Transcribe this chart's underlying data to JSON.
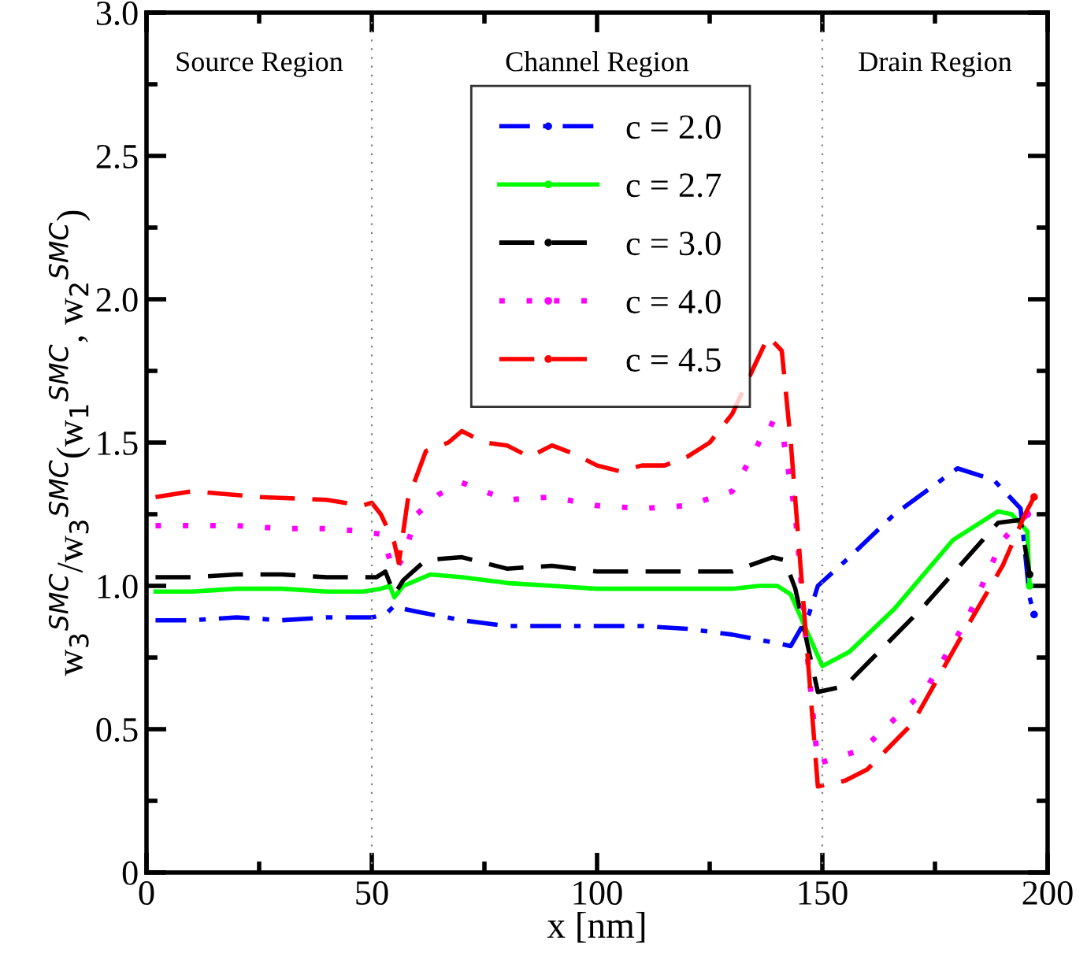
{
  "chart_data": {
    "type": "line",
    "xlabel": "x [nm]",
    "ylabel": "w$_{3}$$^{SMC}$/w$_{3}$$^{SMC}$(w$_{1}$$^{SMC}$, w$_{2}$$^{SMC}$)",
    "xlim": [
      0,
      200
    ],
    "xticks": [
      0,
      50,
      100,
      150,
      200
    ],
    "ylim": [
      0,
      3
    ],
    "yticks": [
      {
        "value": 0,
        "label": "0"
      },
      {
        "value": 0.5,
        "label": "0.5"
      },
      {
        "value": 1,
        "label": "1.0"
      },
      {
        "value": 1.5,
        "label": "1.5"
      },
      {
        "value": 2,
        "label": "2.0"
      },
      {
        "value": 2.5,
        "label": "2.5"
      },
      {
        "value": 3,
        "label": "3.0"
      }
    ],
    "grid": false,
    "legend": "top",
    "annotations": [
      "Source Region",
      "Channel Region",
      "Drain Region"
    ],
    "ref_lines": [
      {
        "axis": "x",
        "value": 50,
        "color": "#808080",
        "line_style": "dotted"
      },
      {
        "axis": "x",
        "value": 150,
        "color": "#808080",
        "line_style": "dotted"
      }
    ],
    "series": [
      {
        "name": "c = 2.0",
        "color": "#0000ff",
        "line_style": "dashdot",
        "x": [
          2,
          10,
          20,
          30,
          40,
          48,
          50,
          53,
          55,
          57,
          60,
          70,
          80,
          90,
          100,
          110,
          120,
          130,
          140,
          143,
          147,
          149,
          156,
          166,
          180,
          188,
          194,
          196,
          197
        ],
        "values": [
          0.88,
          0.88,
          0.89,
          0.88,
          0.89,
          0.89,
          0.89,
          0.9,
          0.93,
          0.92,
          0.91,
          0.88,
          0.86,
          0.86,
          0.86,
          0.86,
          0.85,
          0.83,
          0.8,
          0.79,
          0.9,
          1.0,
          1.1,
          1.25,
          1.41,
          1.37,
          1.27,
          0.96,
          0.9
        ]
      },
      {
        "name": "c = 2.7",
        "color": "#00ff00",
        "line_style": "solid",
        "x": [
          2,
          10,
          20,
          30,
          40,
          48,
          52,
          54,
          55,
          57,
          63,
          70,
          80,
          90,
          100,
          110,
          120,
          130,
          136,
          140,
          143,
          150,
          156,
          166,
          179,
          189,
          192,
          195.5,
          196
        ],
        "values": [
          0.98,
          0.98,
          0.99,
          0.99,
          0.98,
          0.98,
          0.99,
          1.0,
          0.96,
          1.0,
          1.04,
          1.03,
          1.01,
          1.0,
          0.99,
          0.99,
          0.99,
          0.99,
          1.0,
          1.0,
          0.97,
          0.72,
          0.77,
          0.92,
          1.16,
          1.26,
          1.25,
          1.19,
          1.0
        ]
      },
      {
        "name": "c = 3.0",
        "color": "#000000",
        "line_style": "dashed",
        "x": [
          2,
          10,
          20,
          30,
          40,
          48,
          51,
          53,
          55,
          57,
          62,
          70,
          80,
          90,
          100,
          110,
          120,
          130,
          139,
          141.6,
          144,
          149,
          155,
          172,
          189,
          194,
          196
        ],
        "values": [
          1.03,
          1.03,
          1.04,
          1.04,
          1.03,
          1.03,
          1.03,
          1.05,
          0.97,
          1.02,
          1.09,
          1.1,
          1.06,
          1.07,
          1.05,
          1.05,
          1.05,
          1.05,
          1.1,
          1.09,
          0.99,
          0.63,
          0.65,
          0.92,
          1.22,
          1.23,
          1.04
        ]
      },
      {
        "name": "c = 4.0",
        "color": "#ff00ff",
        "line_style": "dotted",
        "x": [
          2,
          10,
          20,
          30,
          40,
          48,
          52,
          55,
          57,
          60,
          65,
          70,
          80,
          90,
          100,
          110,
          120,
          130,
          135,
          138,
          141,
          144,
          147,
          149,
          159,
          173,
          182,
          190,
          195.5
        ],
        "values": [
          1.21,
          1.21,
          1.21,
          1.2,
          1.2,
          1.19,
          1.18,
          1.05,
          1.1,
          1.25,
          1.32,
          1.36,
          1.3,
          1.31,
          1.28,
          1.27,
          1.28,
          1.33,
          1.47,
          1.57,
          1.55,
          1.25,
          0.7,
          0.38,
          0.43,
          0.64,
          0.88,
          1.16,
          1.25
        ]
      },
      {
        "name": "c = 4.5",
        "color": "#ff0000",
        "line_style": "dashed",
        "x": [
          2,
          10,
          25,
          40,
          48,
          50,
          52,
          55,
          56,
          58,
          62,
          67,
          70,
          75,
          80,
          85,
          90,
          95,
          100,
          105,
          110,
          115,
          120,
          125,
          130,
          135,
          138,
          141,
          143,
          146,
          149,
          155,
          160,
          170,
          180,
          190,
          195,
          197
        ],
        "values": [
          1.31,
          1.33,
          1.31,
          1.3,
          1.28,
          1.29,
          1.25,
          1.15,
          1.08,
          1.3,
          1.47,
          1.5,
          1.54,
          1.5,
          1.49,
          1.45,
          1.49,
          1.46,
          1.42,
          1.4,
          1.42,
          1.42,
          1.45,
          1.5,
          1.6,
          1.77,
          1.87,
          1.82,
          1.5,
          0.9,
          0.3,
          0.32,
          0.36,
          0.52,
          0.8,
          1.07,
          1.25,
          1.31
        ]
      }
    ]
  }
}
